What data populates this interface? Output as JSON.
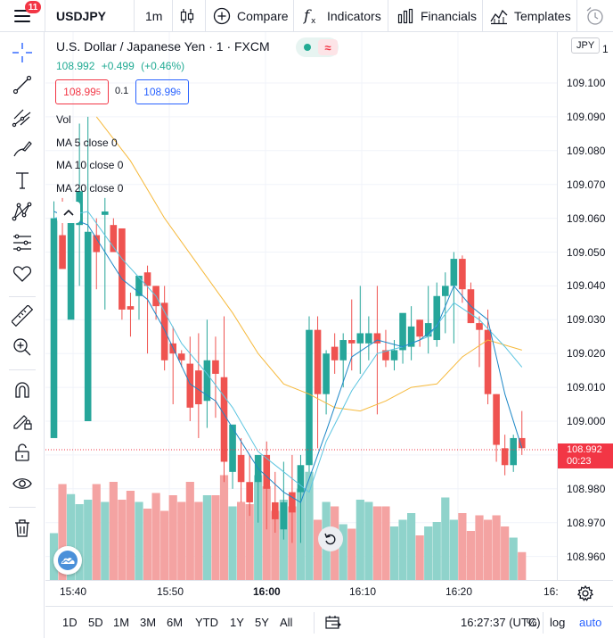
{
  "toolbar": {
    "menu_badge": "11",
    "symbol": "USDJPY",
    "interval": "1m",
    "compare": "Compare",
    "indicators": "Indicators",
    "financials": "Financials",
    "templates": "Templates"
  },
  "legend": {
    "title": "U.S. Dollar / Japanese Yen · 1 · FXCM",
    "last": "108.992",
    "change": "+0.499",
    "change_pct": "(+0.46%)",
    "bid_main": "108.99",
    "bid_sup": "5",
    "spread": "0.1",
    "ask_main": "108.99",
    "ask_sup": "6",
    "vol": "Vol",
    "ma5": "MA 5 close 0",
    "ma10": "MA 10 close 0",
    "ma20": "MA 20 close 0"
  },
  "price_axis": {
    "currency": "JPY",
    "top_partial": "1",
    "ticks": [
      "109.100",
      "109.090",
      "109.080",
      "109.070",
      "109.060",
      "109.050",
      "109.040",
      "109.030",
      "109.020",
      "109.010",
      "109.000",
      "108.990",
      "108.980",
      "108.970",
      "108.960"
    ],
    "last_price": "108.992",
    "countdown": "00:23"
  },
  "time_axis": {
    "ticks": [
      "15:40",
      "15:50",
      "16:00",
      "16:10",
      "16:20",
      "16:"
    ]
  },
  "bottombar": {
    "ranges": [
      "1D",
      "5D",
      "1M",
      "3M",
      "6M",
      "YTD",
      "1Y",
      "5Y",
      "All"
    ],
    "clock": "16:27:37 (UTC)",
    "percent": "%",
    "log": "log",
    "auto": "auto"
  },
  "colors": {
    "up": "#26a69a",
    "down": "#ef5350",
    "vol_up": "#8fd3cb",
    "vol_down": "#f4a3a2",
    "ma5": "#1e88c7",
    "ma10": "#5ac4e0",
    "ma20": "#f6b93b"
  },
  "chart_data": {
    "type": "candlestick",
    "y_axis_price_range": [
      108.955,
      109.108
    ],
    "candles": [
      [
        108.995,
        109.065,
        109.06,
        109.04
      ],
      [
        109.055,
        109.053,
        109.045,
        109.066
      ],
      [
        109.03,
        109.06,
        109.059,
        109.047
      ],
      [
        109.058,
        109.088,
        109.068,
        109.04
      ],
      [
        109.0,
        109.09,
        109.056,
        109.047
      ],
      [
        109.055,
        109.06,
        109.05,
        109.039
      ],
      [
        109.061,
        109.066,
        109.062,
        109.033
      ],
      [
        109.058,
        109.06,
        109.05,
        109.05
      ],
      [
        109.057,
        109.05,
        109.033,
        109.03
      ],
      [
        109.034,
        109.038,
        109.033,
        109.025
      ],
      [
        109.037,
        109.04,
        109.043,
        109.03
      ],
      [
        109.044,
        109.046,
        109.04,
        109.02
      ],
      [
        109.04,
        109.04,
        109.034,
        109.03
      ],
      [
        109.035,
        109.04,
        109.018,
        109.015
      ],
      [
        109.023,
        109.028,
        109.02,
        109.005
      ],
      [
        109.02,
        109.021,
        109.018,
        109.016
      ],
      [
        109.017,
        109.025,
        109.004,
        109.0
      ],
      [
        109.015,
        109.026,
        109.005,
        108.995
      ],
      [
        109.006,
        109.03,
        109.018,
        108.998
      ],
      [
        109.018,
        109.025,
        109.014,
        109.001
      ],
      [
        109.013,
        109.031,
        108.988,
        108.982
      ],
      [
        108.985,
        108.994,
        108.999,
        108.98
      ],
      [
        108.99,
        108.995,
        108.982,
        108.976
      ],
      [
        108.982,
        108.99,
        108.976,
        108.972
      ],
      [
        108.982,
        108.989,
        108.99,
        108.97
      ],
      [
        108.99,
        108.994,
        108.98,
        108.968
      ],
      [
        108.976,
        108.985,
        108.971,
        108.967
      ],
      [
        108.968,
        108.988,
        108.976,
        108.965
      ],
      [
        108.979,
        108.99,
        108.973,
        108.964
      ],
      [
        108.979,
        108.99,
        108.987,
        108.964
      ],
      [
        108.987,
        109.031,
        109.027,
        108.985
      ],
      [
        109.027,
        109.031,
        109.008,
        108.992
      ],
      [
        109.008,
        109.021,
        109.02,
        109.002
      ],
      [
        109.022,
        109.026,
        109.018,
        109.014
      ],
      [
        109.018,
        109.026,
        109.024,
        109.01
      ],
      [
        109.024,
        109.036,
        109.023,
        109.015
      ],
      [
        109.023,
        109.04,
        109.026,
        109.014
      ],
      [
        109.023,
        109.031,
        109.026,
        109.018
      ],
      [
        109.026,
        109.04,
        109.023,
        109.002
      ],
      [
        109.021,
        109.027,
        109.018,
        109.016
      ],
      [
        109.018,
        109.024,
        109.021,
        109.015
      ],
      [
        109.021,
        109.031,
        109.032,
        109.017
      ],
      [
        109.022,
        109.034,
        109.028,
        109.018
      ],
      [
        109.03,
        109.03,
        109.025,
        109.022
      ],
      [
        109.025,
        109.04,
        109.029,
        109.02
      ],
      [
        109.024,
        109.041,
        109.037,
        109.022
      ],
      [
        109.037,
        109.044,
        109.04,
        109.026
      ],
      [
        109.04,
        109.05,
        109.048,
        109.023
      ],
      [
        109.048,
        109.049,
        109.039,
        109.035
      ],
      [
        109.039,
        109.041,
        109.029,
        109.029
      ],
      [
        109.029,
        109.031,
        109.027,
        109.016
      ],
      [
        109.027,
        109.033,
        109.008,
        109.005
      ],
      [
        109.008,
        109.008,
        108.993,
        108.988
      ],
      [
        108.992,
        108.996,
        108.987,
        108.984
      ],
      [
        108.987,
        108.996,
        108.995,
        108.985
      ],
      [
        108.995,
        109.003,
        108.992,
        108.99
      ]
    ],
    "volume_heights": [
      0.42,
      0.86,
      0.77,
      0.68,
      0.72,
      0.86,
      0.7,
      0.88,
      0.72,
      0.8,
      0.7,
      0.64,
      0.78,
      0.62,
      0.76,
      0.7,
      0.88,
      0.7,
      0.76,
      0.76,
      0.94,
      0.66,
      0.7,
      0.68,
      0.94,
      0.84,
      0.62,
      0.72,
      0.66,
      0.82,
      0.97,
      0.54,
      0.7,
      0.66,
      0.5,
      0.46,
      0.72,
      0.7,
      0.66,
      0.66,
      0.48,
      0.54,
      0.6,
      0.4,
      0.48,
      0.52,
      0.74,
      0.54,
      0.6,
      0.44,
      0.58,
      0.54,
      0.58,
      0.48,
      0.38,
      0.25
    ],
    "ma5": [
      [
        0,
        109.062
      ],
      [
        4,
        109.058
      ],
      [
        8,
        109.042
      ],
      [
        11,
        109.036
      ],
      [
        13,
        109.027
      ],
      [
        16,
        109.011
      ],
      [
        19,
        109.006
      ],
      [
        21,
        108.998
      ],
      [
        24,
        108.986
      ],
      [
        27,
        108.979
      ],
      [
        29,
        108.976
      ],
      [
        30,
        108.983
      ],
      [
        32,
        108.997
      ],
      [
        35,
        109.019
      ],
      [
        38,
        109.024
      ],
      [
        41,
        109.022
      ],
      [
        43,
        109.024
      ],
      [
        45,
        109.028
      ],
      [
        47,
        109.04
      ],
      [
        49,
        109.034
      ],
      [
        51,
        109.03
      ],
      [
        53,
        109.008
      ],
      [
        55,
        108.992
      ]
    ],
    "ma10": [
      [
        0,
        109.06
      ],
      [
        4,
        109.062
      ],
      [
        8,
        109.048
      ],
      [
        12,
        109.037
      ],
      [
        15,
        109.023
      ],
      [
        18,
        109.014
      ],
      [
        21,
        109.004
      ],
      [
        24,
        108.991
      ],
      [
        27,
        108.985
      ],
      [
        30,
        108.979
      ],
      [
        32,
        108.994
      ],
      [
        35,
        109.009
      ],
      [
        38,
        109.02
      ],
      [
        41,
        109.022
      ],
      [
        44,
        109.025
      ],
      [
        47,
        109.035
      ],
      [
        50,
        109.03
      ],
      [
        53,
        109.022
      ],
      [
        55,
        109.016
      ]
    ],
    "ma20": [
      [
        5,
        109.09
      ],
      [
        9,
        109.077
      ],
      [
        13,
        109.06
      ],
      [
        17,
        109.046
      ],
      [
        21,
        109.032
      ],
      [
        24,
        109.02
      ],
      [
        27,
        109.011
      ],
      [
        30,
        109.008
      ],
      [
        33,
        109.004
      ],
      [
        36,
        109.003
      ],
      [
        39,
        109.006
      ],
      [
        42,
        109.01
      ],
      [
        45,
        109.011
      ],
      [
        48,
        109.019
      ],
      [
        51,
        109.024
      ],
      [
        55,
        109.021
      ]
    ]
  }
}
